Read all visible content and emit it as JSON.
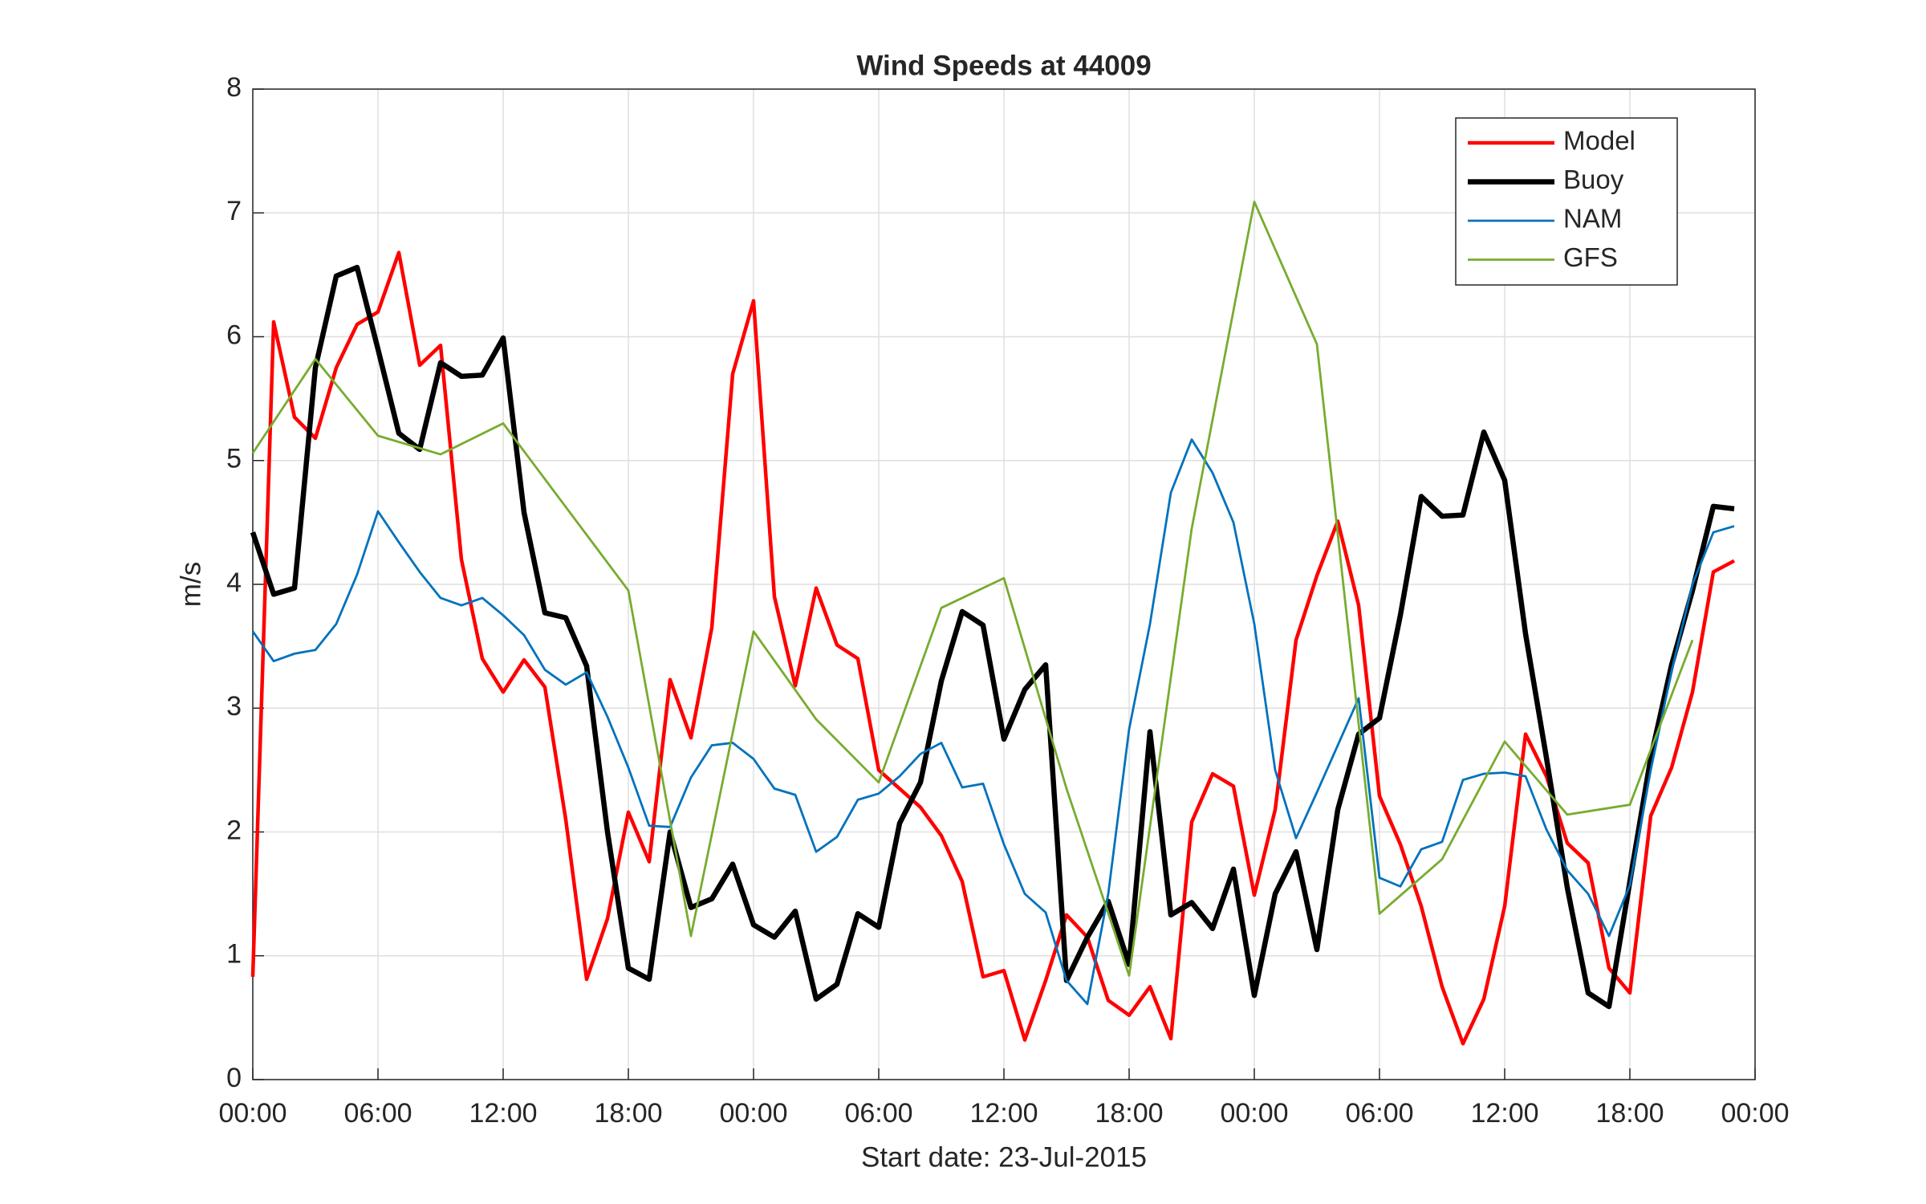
{
  "chart_data": {
    "type": "line",
    "title": "Wind Speeds at 44009",
    "xlabel": "Start date: 23-Jul-2015",
    "ylabel": "m/s",
    "grid": true,
    "legend": "upper right",
    "x": [
      0,
      1,
      2,
      3,
      4,
      5,
      6,
      7,
      8,
      9,
      10,
      11,
      12,
      13,
      14,
      15,
      16,
      17,
      18,
      19,
      20,
      21,
      22,
      23,
      24,
      25,
      26,
      27,
      28,
      29,
      30,
      31,
      32,
      33,
      34,
      35,
      36,
      37,
      38,
      39,
      40,
      41,
      42,
      43,
      44,
      45,
      46,
      47,
      48,
      49,
      50,
      51,
      52,
      53,
      54,
      55,
      56,
      57,
      58,
      59,
      60,
      61,
      62,
      63,
      64,
      65,
      66,
      67,
      68,
      69,
      70,
      71
    ],
    "xlim": [
      0,
      72
    ],
    "xticks": [
      {
        "value": 0,
        "label": "00:00"
      },
      {
        "value": 6,
        "label": "06:00"
      },
      {
        "value": 12,
        "label": "12:00"
      },
      {
        "value": 18,
        "label": "18:00"
      },
      {
        "value": 24,
        "label": "00:00"
      },
      {
        "value": 30,
        "label": "06:00"
      },
      {
        "value": 36,
        "label": "12:00"
      },
      {
        "value": 42,
        "label": "18:00"
      },
      {
        "value": 48,
        "label": "00:00"
      },
      {
        "value": 54,
        "label": "06:00"
      },
      {
        "value": 60,
        "label": "12:00"
      },
      {
        "value": 66,
        "label": "18:00"
      },
      {
        "value": 72,
        "label": "00:00"
      }
    ],
    "ylim": [
      0,
      8
    ],
    "yticks": [
      0,
      1,
      2,
      3,
      4,
      5,
      6,
      7,
      8
    ],
    "series": [
      {
        "name": "Model",
        "color": "#ff0000",
        "width": 4.5,
        "values": [
          0.83,
          6.12,
          5.35,
          5.18,
          5.75,
          6.1,
          6.2,
          6.68,
          5.77,
          5.93,
          4.2,
          3.4,
          3.13,
          3.39,
          3.17,
          2.1,
          0.81,
          1.3,
          2.16,
          1.76,
          3.23,
          2.76,
          3.65,
          5.7,
          6.29,
          3.9,
          3.18,
          3.97,
          3.51,
          3.4,
          2.5,
          2.35,
          2.2,
          1.97,
          1.6,
          0.83,
          0.88,
          0.32,
          0.8,
          1.33,
          1.15,
          0.64,
          0.52,
          0.75,
          0.33,
          2.08,
          2.47,
          2.37,
          1.49,
          2.18,
          3.55,
          4.07,
          4.51,
          3.83,
          2.29,
          1.9,
          1.4,
          0.75,
          0.29,
          0.65,
          1.4,
          2.79,
          2.45,
          1.91,
          1.75,
          0.9,
          0.7,
          2.13,
          2.52,
          3.13,
          4.1,
          4.19
        ]
      },
      {
        "name": "Buoy",
        "color": "#000000",
        "width": 6.5,
        "values": [
          4.42,
          3.92,
          3.97,
          5.75,
          6.49,
          6.56,
          5.9,
          5.22,
          5.09,
          5.79,
          5.68,
          5.69,
          5.99,
          4.58,
          3.77,
          3.73,
          3.34,
          2.0,
          0.9,
          0.81,
          2.0,
          1.39,
          1.46,
          1.74,
          1.25,
          1.15,
          1.36,
          0.65,
          0.77,
          1.34,
          1.23,
          2.07,
          2.4,
          3.22,
          3.78,
          3.67,
          2.75,
          3.15,
          3.35,
          0.8,
          1.15,
          1.44,
          0.93,
          2.81,
          1.33,
          1.43,
          1.22,
          1.7,
          0.68,
          1.5,
          1.84,
          1.05,
          2.18,
          2.79,
          2.92,
          3.75,
          4.71,
          4.55,
          4.56,
          5.23,
          4.84,
          3.6,
          2.6,
          1.55,
          0.7,
          0.59,
          1.6,
          2.6,
          3.35,
          3.95,
          4.63,
          4.61
        ]
      },
      {
        "name": "NAM",
        "color": "#0072bd",
        "width": 2.8,
        "values": [
          3.62,
          3.38,
          3.44,
          3.47,
          3.68,
          4.08,
          4.59,
          4.34,
          4.1,
          3.89,
          3.83,
          3.89,
          3.75,
          3.59,
          3.31,
          3.19,
          3.29,
          2.93,
          2.52,
          2.05,
          2.04,
          2.44,
          2.7,
          2.72,
          2.59,
          2.35,
          2.3,
          1.84,
          1.96,
          2.26,
          2.31,
          2.45,
          2.63,
          2.72,
          2.36,
          2.39,
          1.9,
          1.5,
          1.35,
          0.8,
          0.61,
          1.5,
          2.83,
          3.68,
          4.74,
          5.17,
          4.9,
          4.5,
          3.68,
          2.5,
          1.95,
          2.32,
          2.7,
          3.08,
          1.63,
          1.56,
          1.86,
          1.92,
          2.42,
          2.47,
          2.48,
          2.45,
          2.02,
          1.69,
          1.5,
          1.16,
          1.57,
          2.5,
          3.3,
          4.0,
          4.42,
          4.47
        ]
      },
      {
        "name": "GFS",
        "color": "#77ac30",
        "width": 2.8,
        "x": [
          0,
          3,
          6,
          9,
          12,
          18,
          21,
          24,
          27,
          30,
          33,
          36,
          39,
          42,
          45,
          48,
          51,
          54,
          57,
          60,
          63,
          66,
          69
        ],
        "values": [
          5.06,
          5.82,
          5.2,
          5.05,
          5.3,
          3.95,
          1.16,
          3.62,
          2.91,
          2.4,
          3.81,
          4.05,
          2.35,
          0.84,
          4.45,
          7.09,
          5.94,
          1.34,
          1.78,
          2.73,
          2.14,
          2.22,
          3.55
        ]
      }
    ]
  }
}
